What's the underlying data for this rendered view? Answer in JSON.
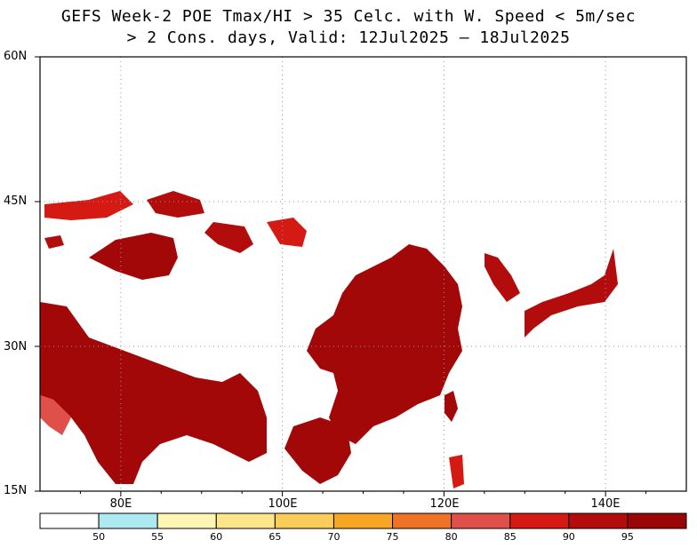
{
  "title": {
    "line1": "GEFS Week-2 POE Tmax/HI > 35 Celc. with W. Speed < 5m/sec",
    "line2": "> 2 Cons. days, Valid: 12Jul2025 — 18Jul2025"
  },
  "axes": {
    "lat_labels": [
      "60N",
      "45N",
      "30N",
      "15N"
    ],
    "lon_labels": [
      "80E",
      "100E",
      "120E",
      "140E"
    ],
    "lat_range": [
      15,
      60
    ],
    "lon_range": [
      70,
      150
    ],
    "grid": "dotted"
  },
  "colorbar": {
    "labels": [
      "50",
      "55",
      "60",
      "65",
      "70",
      "75",
      "80",
      "85",
      "90",
      "95"
    ],
    "colors": [
      "#ffffff",
      "#aee9f2",
      "#fff6b4",
      "#fde68a",
      "#f8cd5a",
      "#f6a623",
      "#ee7326",
      "#e0504a",
      "#d41a12",
      "#b30c0c",
      "#9a0606"
    ]
  }
}
